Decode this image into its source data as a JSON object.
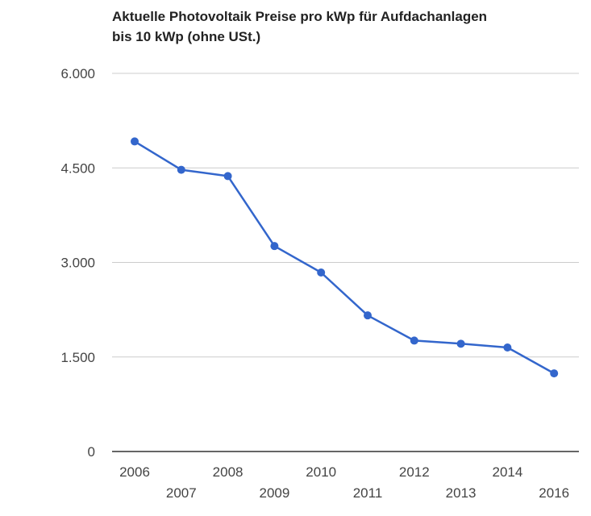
{
  "chart_data": {
    "type": "line",
    "title_lines": [
      "Aktuelle Photovoltaik Preise pro kWp für Aufdachanlagen",
      "bis 10 kWp (ohne USt.)"
    ],
    "x": [
      "2006",
      "2007",
      "2008",
      "2009",
      "2010",
      "2011",
      "2012",
      "2013",
      "2014",
      "2016"
    ],
    "series": [
      {
        "values": [
          4920,
          4470,
          4370,
          3260,
          2840,
          2160,
          1760,
          1710,
          1650,
          1240
        ]
      }
    ],
    "ylim": [
      0,
      6000
    ],
    "yticks": [
      0,
      1500,
      3000,
      4500,
      6000
    ],
    "ytick_labels": [
      "0",
      "1.500",
      "3.000",
      "4.500",
      "6.000"
    ],
    "grid": true,
    "legend": "none",
    "colors": {
      "line": "#3366cc",
      "grid": "#cccccc",
      "axis": "#333333",
      "text": "#444444"
    }
  }
}
